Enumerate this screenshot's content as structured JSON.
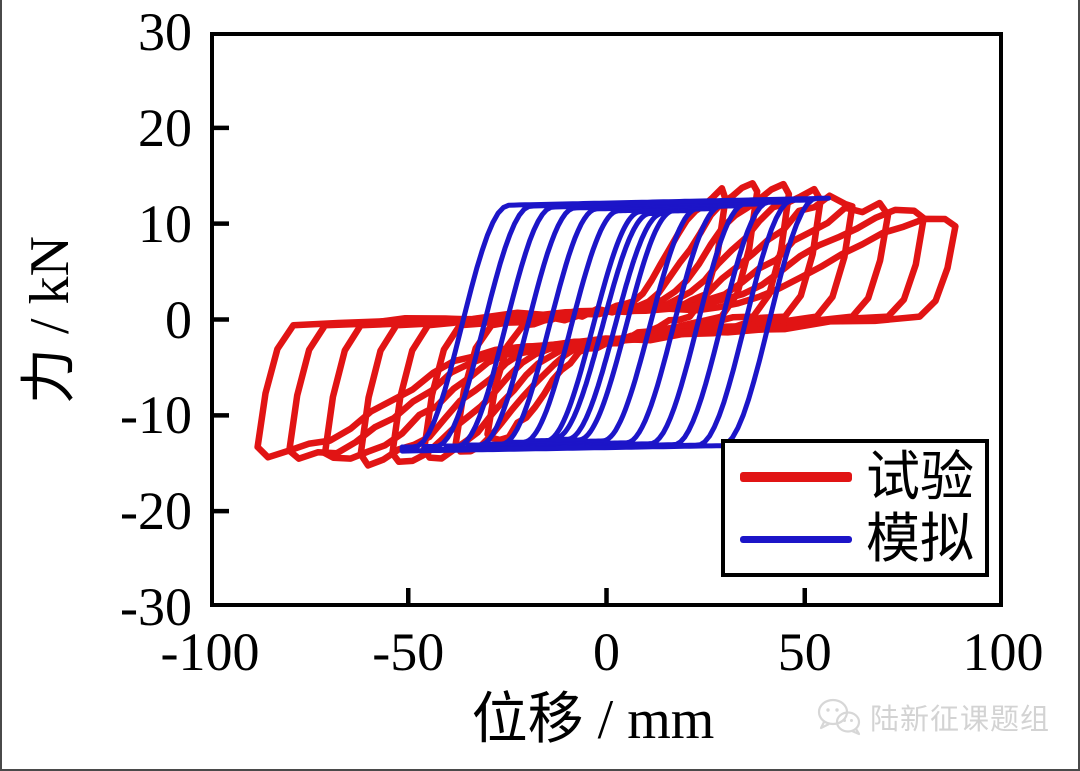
{
  "chart_data": {
    "type": "line",
    "subtype": "hysteresis-loops",
    "title": "",
    "xlabel": "位移 / mm",
    "ylabel": "力 / kN",
    "xlim": [
      -100,
      100
    ],
    "ylim": [
      -30,
      30
    ],
    "xticks": [
      -100,
      -50,
      0,
      50,
      100
    ],
    "yticks": [
      30,
      20,
      10,
      0,
      -10,
      -20,
      -30
    ],
    "grid": false,
    "legend_position": "lower right",
    "series": [
      {
        "name": "试验",
        "color": "#e11414",
        "style": "pinched",
        "cycles": [
          {
            "amp": 30,
            "f_pos": 13.2,
            "f_neg": -12.6
          },
          {
            "amp": 38,
            "f_pos": 14.3,
            "f_neg": -13.6
          },
          {
            "amp": 46,
            "f_pos": 13.9,
            "f_neg": -14.3
          },
          {
            "amp": 54,
            "f_pos": 13.2,
            "f_neg": -14.7
          },
          {
            "amp": 62,
            "f_pos": 12.6,
            "f_neg": -14.8
          },
          {
            "amp": 71,
            "f_pos": 11.9,
            "f_neg": -14.7
          },
          {
            "amp": 80,
            "f_pos": 11.1,
            "f_neg": -14.4
          },
          {
            "amp": 88,
            "f_pos": 10.4,
            "f_neg": -14.0
          }
        ]
      },
      {
        "name": "模拟",
        "color": "#1c15c8",
        "style": "full",
        "neg_scale": 0.92,
        "cycles": [
          {
            "amp": 14,
            "f_pos": 11.4,
            "f_neg": -12.5
          },
          {
            "amp": 20,
            "f_pos": 11.6,
            "f_neg": -12.7
          },
          {
            "amp": 26,
            "f_pos": 11.7,
            "f_neg": -12.8
          },
          {
            "amp": 32,
            "f_pos": 11.9,
            "f_neg": -13.0
          },
          {
            "amp": 38,
            "f_pos": 12.0,
            "f_neg": -13.1
          },
          {
            "amp": 44,
            "f_pos": 12.1,
            "f_neg": -13.2
          },
          {
            "amp": 50,
            "f_pos": 12.2,
            "f_neg": -13.25
          },
          {
            "amp": 56,
            "f_pos": 12.3,
            "f_neg": -13.3
          }
        ]
      }
    ]
  },
  "legend": {
    "items": [
      {
        "label": "试验",
        "color": "#e11414"
      },
      {
        "label": "模拟",
        "color": "#1c15c8"
      }
    ]
  },
  "watermark": {
    "text": "陆新征课题组",
    "icon": "wechat-icon"
  }
}
